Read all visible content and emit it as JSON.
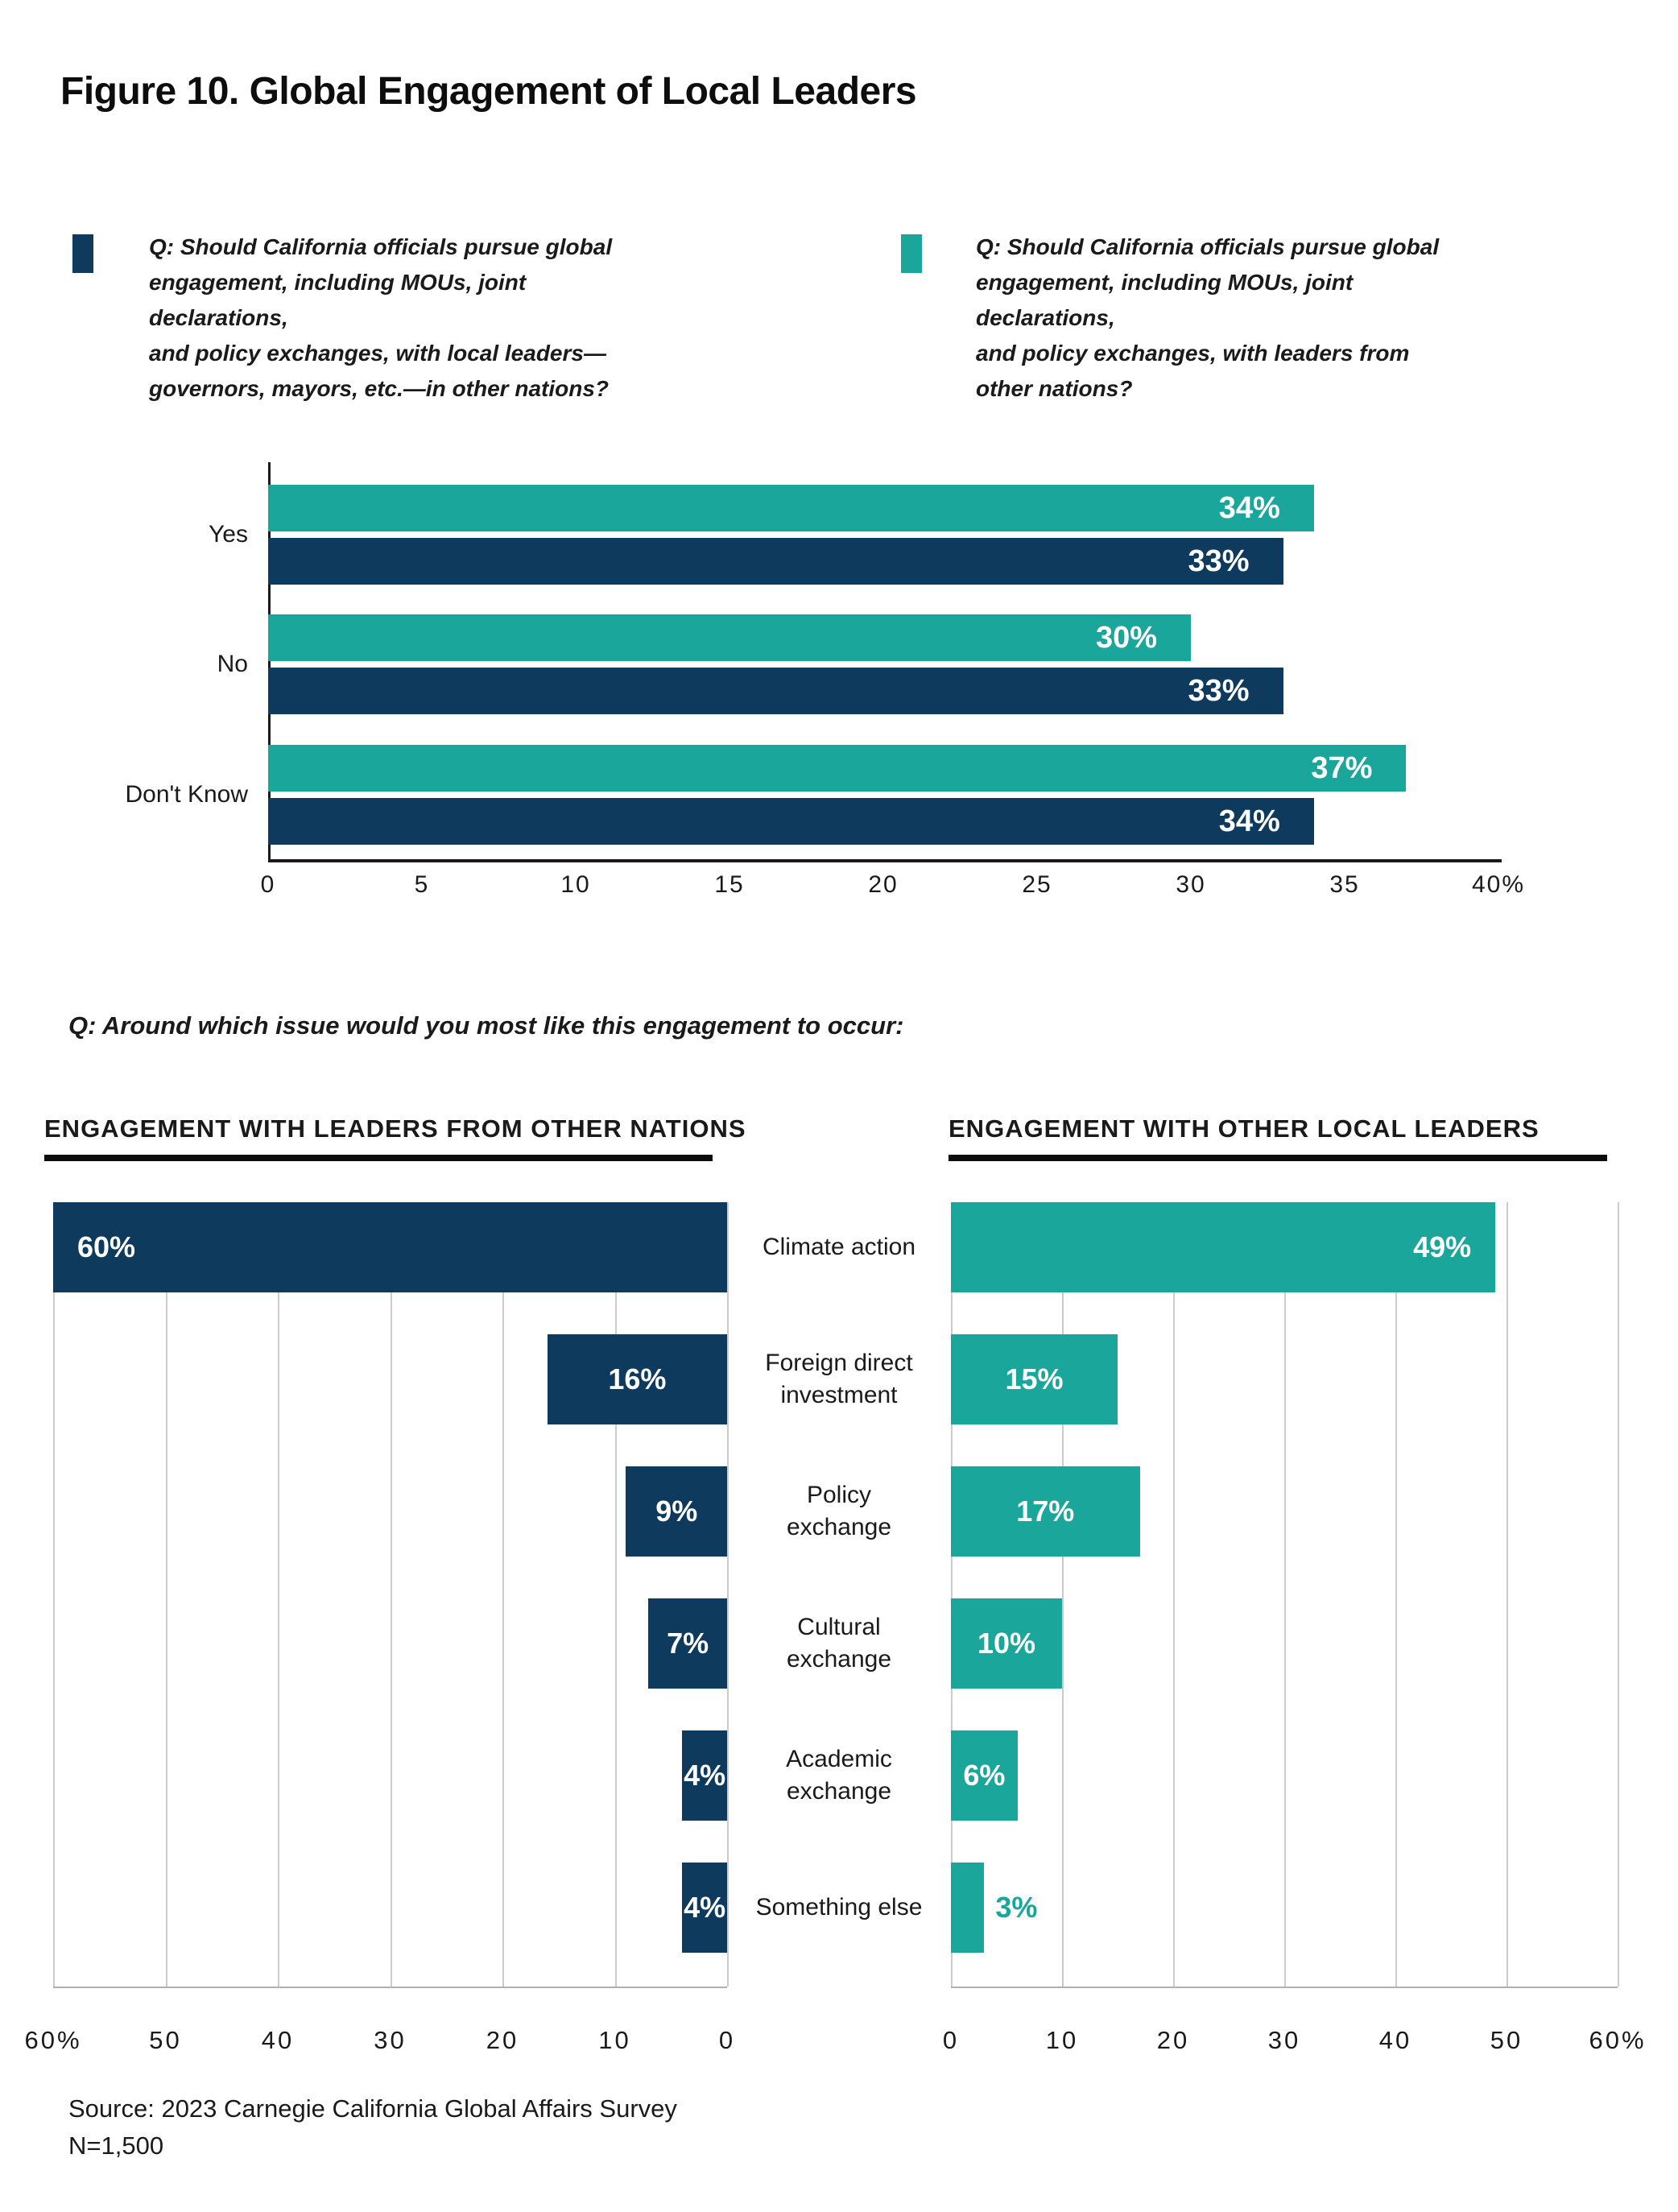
{
  "title": "Figure 10. Global Engagement of Local Leaders",
  "colors": {
    "navy": "#0E3A5E",
    "teal": "#1BA69C",
    "grid": "#CCCCCC",
    "axis": "#1A1A1A"
  },
  "legend": [
    {
      "color": "navy",
      "text": "Q: Should California officials pursue global\nengagement, including MOUs, joint declarations,\nand policy exchanges, with local leaders—\ngovernors, mayors, etc.—in other nations?"
    },
    {
      "color": "teal",
      "text": "Q: Should California officials pursue global\nengagement, including MOUs, joint declarations,\nand policy exchanges, with leaders from\nother nations?"
    }
  ],
  "question2": "Q: Around which issue would you most like this engagement to occur:",
  "chart_data": [
    {
      "type": "bar",
      "orientation": "horizontal",
      "categories": [
        "Yes",
        "No",
        "Don't Know"
      ],
      "series": [
        {
          "legend_ref": 1,
          "color": "teal",
          "values": [
            34,
            30,
            37
          ],
          "labels": [
            "34%",
            "30%",
            "37%"
          ]
        },
        {
          "legend_ref": 0,
          "color": "navy",
          "values": [
            33,
            33,
            34
          ],
          "labels": [
            "33%",
            "33%",
            "34%"
          ]
        }
      ],
      "xlim": [
        0,
        40
      ],
      "x_ticks": [
        "0",
        "5",
        "10",
        "15",
        "20",
        "25",
        "30",
        "35",
        "40%"
      ],
      "grid": false,
      "legend_position": "top"
    },
    {
      "type": "bar",
      "orientation": "horizontal",
      "direction": "rtl",
      "title": "ENGAGEMENT WITH LEADERS FROM OTHER NATIONS",
      "color": "navy",
      "categories": [
        "Climate action",
        "Foreign direct\ninvestment",
        "Policy\nexchange",
        "Cultural\nexchange",
        "Academic\nexchange",
        "Something else"
      ],
      "values": [
        60,
        16,
        9,
        7,
        4,
        4
      ],
      "labels": [
        "60%",
        "16%",
        "9%",
        "7%",
        "4%",
        "4%"
      ],
      "xlim": [
        0,
        60
      ],
      "x_ticks": [
        "60%",
        "50",
        "40",
        "30",
        "20",
        "10",
        "0"
      ],
      "grid": true
    },
    {
      "type": "bar",
      "orientation": "horizontal",
      "direction": "ltr",
      "title": "ENGAGEMENT WITH OTHER LOCAL LEADERS",
      "color": "teal",
      "categories": [
        "Climate action",
        "Foreign direct\ninvestment",
        "Policy\nexchange",
        "Cultural\nexchange",
        "Academic\nexchange",
        "Something else"
      ],
      "values": [
        49,
        15,
        17,
        10,
        6,
        3
      ],
      "labels": [
        "49%",
        "15%",
        "17%",
        "10%",
        "6%",
        "3%"
      ],
      "xlim": [
        0,
        60
      ],
      "x_ticks": [
        "0",
        "10",
        "20",
        "30",
        "40",
        "50",
        "60%"
      ],
      "grid": true
    }
  ],
  "source_line1": "Source: 2023 Carnegie California Global Affairs Survey",
  "source_line2": "N=1,500"
}
